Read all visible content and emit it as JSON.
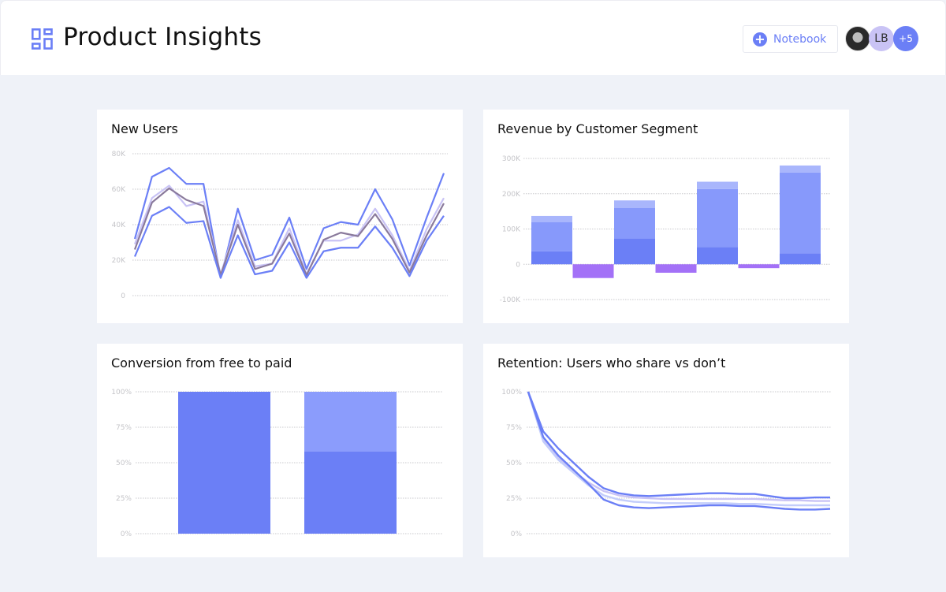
{
  "header": {
    "title": "Product Insights",
    "notebook_label": "Notebook",
    "avatars": [
      {
        "type": "photo"
      },
      {
        "initials": "LB"
      },
      {
        "label": "+5"
      }
    ],
    "icons": {
      "logo": "dashboard-grid-icon",
      "notebook": "plus-circle-icon"
    }
  },
  "colors": {
    "accent": "#6b7ff6",
    "background": "#eff2f8",
    "negative": "#a371f7",
    "lavender": "#c9c3f5",
    "grey_purple": "#8a7a9c",
    "light_blue": "#c3cdfb"
  },
  "chart_data": [
    {
      "type": "line",
      "title": "New Users",
      "ylim": [
        0,
        80000
      ],
      "ytick_labels": [
        "0",
        "20K",
        "40K",
        "60K",
        "80K"
      ],
      "grid": true,
      "series": [
        {
          "color": "#6b7ff6",
          "values": [
            32000,
            67000,
            72000,
            63000,
            63000,
            10000,
            49000,
            20000,
            23000,
            44000,
            15000,
            38000,
            41500,
            40000,
            60000,
            43000,
            17000,
            44000,
            69000
          ]
        },
        {
          "color": "#c9c3f5",
          "values": [
            29000,
            55000,
            62000,
            50500,
            53000,
            12000,
            42500,
            16500,
            18000,
            38000,
            12000,
            31000,
            31000,
            34500,
            49000,
            34000,
            14000,
            37500,
            55000
          ]
        },
        {
          "color": "#8a7a9c",
          "values": [
            26000,
            52500,
            60500,
            54000,
            50500,
            11500,
            40000,
            15000,
            18000,
            35000,
            11500,
            31500,
            35500,
            33500,
            46000,
            32000,
            13000,
            34000,
            52000
          ]
        },
        {
          "color": "#6b7ff6",
          "values": [
            22000,
            45000,
            50000,
            41000,
            42000,
            10000,
            34000,
            12000,
            14000,
            30000,
            10000,
            25000,
            27000,
            27000,
            39000,
            27000,
            11000,
            31000,
            45000
          ]
        }
      ]
    },
    {
      "type": "bar",
      "title": "Revenue by Customer Segment",
      "ylim": [
        -100000,
        300000
      ],
      "ytick_labels": [
        "-100K",
        "0",
        "100K",
        "200K",
        "300K"
      ],
      "grid": true,
      "bars": [
        {
          "kind": "positive",
          "stack": [
            37000,
            119000,
            137000
          ]
        },
        {
          "kind": "negative",
          "value": -39000
        },
        {
          "kind": "positive",
          "stack": [
            73000,
            160000,
            181000
          ]
        },
        {
          "kind": "negative",
          "value": -24000
        },
        {
          "kind": "positive",
          "stack": [
            49000,
            213000,
            234000
          ]
        },
        {
          "kind": "negative",
          "value": -11000
        },
        {
          "kind": "positive",
          "stack": [
            31000,
            260000,
            280000
          ]
        }
      ]
    },
    {
      "type": "bar",
      "title": "Conversion from free to paid",
      "ylim": [
        0,
        100
      ],
      "ytick_labels": [
        "0%",
        "25%",
        "50%",
        "75%",
        "100%"
      ],
      "grid": true,
      "bars": [
        {
          "stack": [
            100
          ]
        },
        {
          "stack": [
            58,
            100
          ]
        }
      ]
    },
    {
      "type": "line",
      "title": "Retention: Users who share vs don’t",
      "ylim": [
        0,
        100
      ],
      "ytick_labels": [
        "0%",
        "25%",
        "50%",
        "75%",
        "100%"
      ],
      "grid": true,
      "series": [
        {
          "color": "#c9c3f5",
          "values": [
            100,
            66,
            53,
            44,
            36,
            30,
            27,
            25.5,
            25,
            24.5,
            24.5,
            24.5,
            24.5,
            24.5,
            24.5,
            24.5,
            24,
            23.5,
            23.5,
            23,
            23
          ]
        },
        {
          "color": "#c3cdfb",
          "values": [
            100,
            65,
            52,
            43,
            34,
            27,
            24,
            22.5,
            22,
            21.5,
            21.5,
            21.5,
            21.5,
            21.5,
            21,
            21,
            20.5,
            20,
            20,
            20,
            20
          ]
        },
        {
          "color": "#6b7ff6",
          "values": [
            100,
            72,
            60,
            50,
            40,
            32,
            28.5,
            27,
            26.5,
            27,
            27.5,
            28,
            28.5,
            28.5,
            28,
            28,
            26.5,
            25,
            25,
            25.5,
            25.5
          ]
        },
        {
          "color": "#6b7ff6",
          "values": [
            100,
            68,
            55,
            45,
            35,
            24,
            20,
            18.5,
            18,
            18.5,
            19,
            19.5,
            20,
            20,
            19.5,
            19.5,
            18.5,
            17.5,
            17,
            17,
            17.5
          ]
        }
      ]
    }
  ]
}
